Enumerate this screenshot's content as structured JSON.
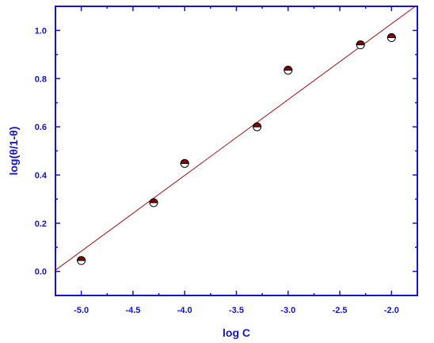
{
  "chart_data": {
    "type": "scatter",
    "title": "",
    "xlabel": "log C",
    "ylabel": "log(θ/1-θ)",
    "xlim": [
      -5.25,
      -1.75
    ],
    "ylim": [
      -0.1,
      1.1
    ],
    "x_ticks": [
      -5.0,
      -4.5,
      -4.0,
      -3.5,
      -3.0,
      -2.5,
      -2.0
    ],
    "x_tick_labels": [
      "-5.0",
      "-4.5",
      "-4.0",
      "-3.5",
      "-3.0",
      "-2.5",
      "-2.0"
    ],
    "y_ticks": [
      0.0,
      0.2,
      0.4,
      0.6,
      0.8,
      1.0
    ],
    "y_tick_labels": [
      "0.0",
      "0.2",
      "0.4",
      "0.6",
      "0.8",
      "1.0"
    ],
    "grid": false,
    "series": [
      {
        "marker": "half-filled circle",
        "color": "#8b0000",
        "points": [
          {
            "x": -5.0,
            "y": 0.045
          },
          {
            "x": -4.3,
            "y": 0.285
          },
          {
            "x": -4.0,
            "y": 0.448
          },
          {
            "x": -3.3,
            "y": 0.6
          },
          {
            "x": -3.0,
            "y": 0.835
          },
          {
            "x": -2.3,
            "y": 0.94
          },
          {
            "x": -2.0,
            "y": 0.97
          }
        ]
      }
    ],
    "fit_line": {
      "color": "#a01010",
      "points": [
        {
          "x": -5.25,
          "y": 0.005
        },
        {
          "x": -1.77,
          "y": 1.1
        }
      ]
    },
    "axis_color": "#1414c8"
  }
}
